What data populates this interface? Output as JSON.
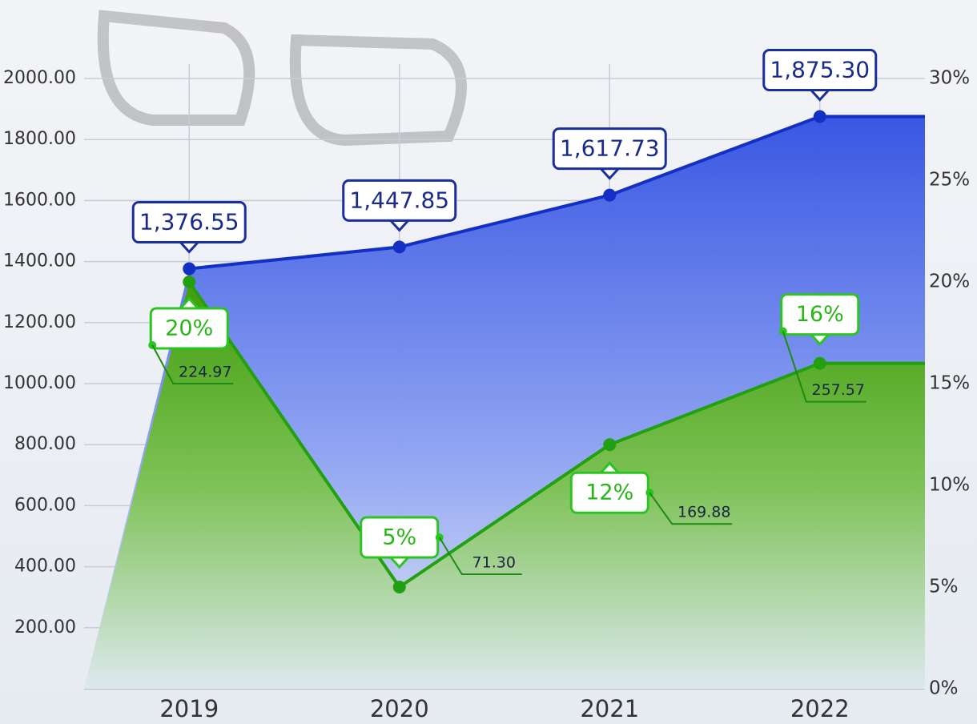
{
  "chart_data": {
    "type": "area",
    "categories": [
      "2019",
      "2020",
      "2021",
      "2022"
    ],
    "ylim": [
      0,
      2000
    ],
    "yticks": [
      {
        "value": 200,
        "label": "200.00"
      },
      {
        "value": 400,
        "label": "400.00"
      },
      {
        "value": 600,
        "label": "600.00"
      },
      {
        "value": 800,
        "label": "800.00"
      },
      {
        "value": 1000,
        "label": "1000.00"
      },
      {
        "value": 1200,
        "label": "1200.00"
      },
      {
        "value": 1400,
        "label": "1400.00"
      },
      {
        "value": 1600,
        "label": "1600.00"
      },
      {
        "value": 1800,
        "label": "1800.00"
      },
      {
        "value": 2000,
        "label": "2000.00"
      }
    ],
    "y2lim": [
      0,
      30
    ],
    "y2ticks": [
      {
        "value": 0,
        "label": "0%"
      },
      {
        "value": 5,
        "label": "5%"
      },
      {
        "value": 10,
        "label": "10%"
      },
      {
        "value": 15,
        "label": "15%"
      },
      {
        "value": 20,
        "label": "20%"
      },
      {
        "value": 25,
        "label": "25%"
      },
      {
        "value": 30,
        "label": "30%"
      }
    ],
    "grid": true,
    "series": [
      {
        "color": "#1430c4",
        "values": [
          1376.55,
          1447.85,
          1617.73,
          1875.3
        ],
        "value_labels": [
          "1,376.55",
          "1,447.85",
          "1,617.73",
          "1,875.30"
        ]
      },
      {
        "color": "#22a011",
        "axis": "y2",
        "values": [
          20,
          5,
          12,
          16
        ],
        "value_labels": [
          "20%",
          "5%",
          "12%",
          "16%"
        ],
        "callouts": [
          "224.97",
          "71.30",
          "169.88",
          "257.57"
        ]
      }
    ]
  }
}
